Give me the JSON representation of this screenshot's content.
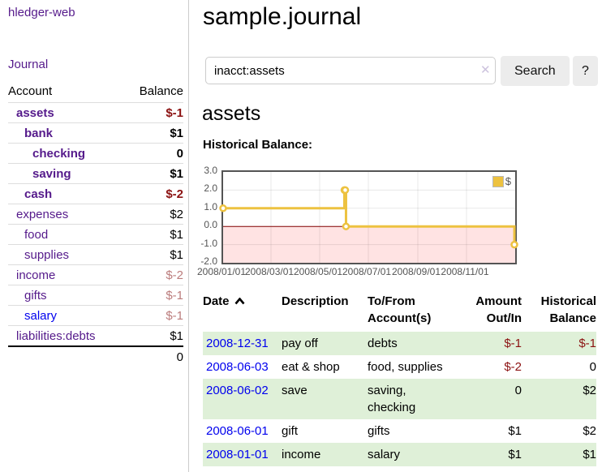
{
  "app": {
    "title": "hledger-web"
  },
  "colors": {
    "link_purple": "#551a8b",
    "link_blue": "#0000ee",
    "negative_strong": "#8b1111",
    "negative_light": "#bb7c7c",
    "stripe_green": "#dff0d8",
    "chart_line": "#edc240",
    "chart_negative_fill": "#ffe3e3",
    "chart_zero_line": "#800000",
    "chart_border": "#545454"
  },
  "sidebar": {
    "nav": {
      "journal_label": "Journal"
    },
    "headers": {
      "account": "Account",
      "balance": "Balance"
    },
    "accounts": [
      {
        "name": "assets",
        "indent": 0,
        "bold": true,
        "balance": "$-1",
        "balance_style": "amt-neg",
        "link_style": "link-purple"
      },
      {
        "name": "bank",
        "indent": 1,
        "bold": true,
        "balance": "$1",
        "balance_style": "amt-pos",
        "link_style": "link-purple"
      },
      {
        "name": "checking",
        "indent": 2,
        "bold": true,
        "balance": "0",
        "balance_style": "amt-pos",
        "link_style": "link-purple"
      },
      {
        "name": "saving",
        "indent": 2,
        "bold": true,
        "balance": "$1",
        "balance_style": "amt-pos",
        "link_style": "link-purple"
      },
      {
        "name": "cash",
        "indent": 1,
        "bold": true,
        "balance": "$-2",
        "balance_style": "amt-neg",
        "link_style": "link-purple"
      },
      {
        "name": "expenses",
        "indent": 0,
        "bold": false,
        "balance": "$2",
        "balance_style": "amt-pos",
        "link_style": "link-purple"
      },
      {
        "name": "food",
        "indent": 1,
        "bold": false,
        "balance": "$1",
        "balance_style": "amt-pos",
        "link_style": "link-purple"
      },
      {
        "name": "supplies",
        "indent": 1,
        "bold": false,
        "balance": "$1",
        "balance_style": "amt-pos",
        "link_style": "link-purple"
      },
      {
        "name": "income",
        "indent": 0,
        "bold": false,
        "balance": "$-2",
        "balance_style": "amt-neglight",
        "link_style": "link-purple"
      },
      {
        "name": "gifts",
        "indent": 1,
        "bold": false,
        "balance": "$-1",
        "balance_style": "amt-neglight",
        "link_style": "link-purple"
      },
      {
        "name": "salary",
        "indent": 1,
        "bold": false,
        "balance": "$-1",
        "balance_style": "amt-neglight",
        "link_style": "link-blue"
      },
      {
        "name": "liabilities:debts",
        "indent": 0,
        "bold": false,
        "balance": "$1",
        "balance_style": "amt-pos",
        "link_style": "link-purple"
      }
    ],
    "total": "0"
  },
  "main": {
    "title": "sample.journal",
    "search": {
      "value": "inacct:assets",
      "clear_icon": "✕",
      "button_label": "Search",
      "help_label": "?"
    },
    "section_title": "assets",
    "chart_title": "Historical Balance:"
  },
  "chart_data": {
    "type": "line",
    "title": "Historical Balance:",
    "xlim": [
      0,
      366
    ],
    "ylim": [
      -2,
      3
    ],
    "grid": true,
    "legend_position": "top-right",
    "y_ticks": [
      3.0,
      2.0,
      1.0,
      0.0,
      -1.0,
      -2.0
    ],
    "x_ticks": [
      {
        "label": "2008/01/01",
        "day": 0
      },
      {
        "label": "2008/03/01",
        "day": 60
      },
      {
        "label": "2008/05/01",
        "day": 121
      },
      {
        "label": "2008/07/01",
        "day": 182
      },
      {
        "label": "2008/09/01",
        "day": 244
      },
      {
        "label": "2008/11/01",
        "day": 305
      }
    ],
    "series": [
      {
        "name": "$",
        "color": "#edc240",
        "steps": true,
        "points": [
          {
            "date": "2008-01-01",
            "day": 0,
            "value": 1
          },
          {
            "date": "2008-06-01",
            "day": 152,
            "value": 2
          },
          {
            "date": "2008-06-02",
            "day": 153,
            "value": 2
          },
          {
            "date": "2008-06-03",
            "day": 154,
            "value": 0
          },
          {
            "date": "2008-12-31",
            "day": 365,
            "value": -1
          }
        ]
      }
    ]
  },
  "register": {
    "columns": {
      "date": "Date",
      "description": "Description",
      "accounts": "To/From Account(s)",
      "amount": "Amount Out/In",
      "balance": "Historical Balance"
    },
    "sort": {
      "column": "Date",
      "direction": "ascending"
    },
    "rows": [
      {
        "date": "2008-12-31",
        "description": "pay off",
        "accounts": "debts",
        "amount": "$-1",
        "amount_style": "amt-neg",
        "balance": "$-1",
        "balance_style": "amt-neg"
      },
      {
        "date": "2008-06-03",
        "description": "eat & shop",
        "accounts": "food, supplies",
        "amount": "$-2",
        "amount_style": "amt-neg",
        "balance": "0",
        "balance_style": "amt-pos"
      },
      {
        "date": "2008-06-02",
        "description": "save",
        "accounts": "saving, checking",
        "amount": "0",
        "amount_style": "amt-pos",
        "balance": "$2",
        "balance_style": "amt-pos"
      },
      {
        "date": "2008-06-01",
        "description": "gift",
        "accounts": "gifts",
        "amount": "$1",
        "amount_style": "amt-pos",
        "balance": "$2",
        "balance_style": "amt-pos"
      },
      {
        "date": "2008-01-01",
        "description": "income",
        "accounts": "salary",
        "amount": "$1",
        "amount_style": "amt-pos",
        "balance": "$1",
        "balance_style": "amt-pos"
      }
    ]
  }
}
